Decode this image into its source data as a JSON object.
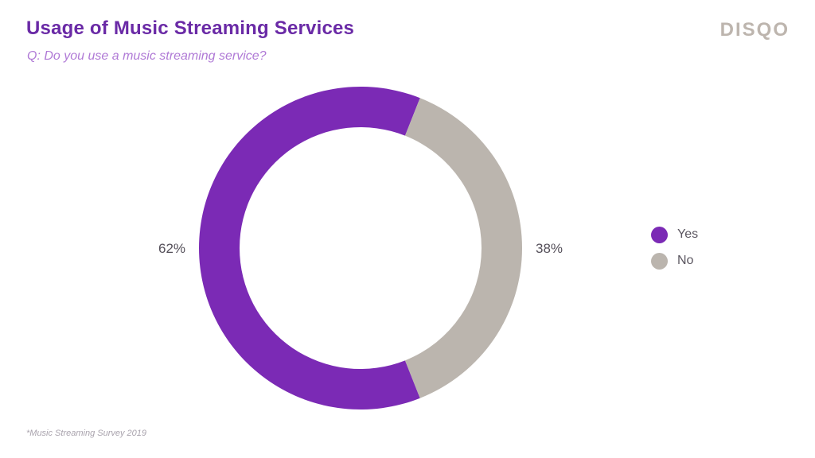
{
  "header": {
    "title": "Usage of Music Streaming Services",
    "subtitle": "Q: Do you use a music streaming service?",
    "logo_text": "DISQO"
  },
  "footer": {
    "source": "*Music Streaming Survey 2019"
  },
  "chart_data": {
    "type": "pie",
    "variant": "donut",
    "title": "Usage of Music Streaming Services",
    "subtitle": "Q: Do you use a music streaming service?",
    "categories": [
      "Yes",
      "No"
    ],
    "values": [
      62,
      38
    ],
    "labels": [
      "62%",
      "38%"
    ],
    "colors": [
      "#7b2ab5",
      "#bbb5ae"
    ],
    "legend_position": "right"
  }
}
